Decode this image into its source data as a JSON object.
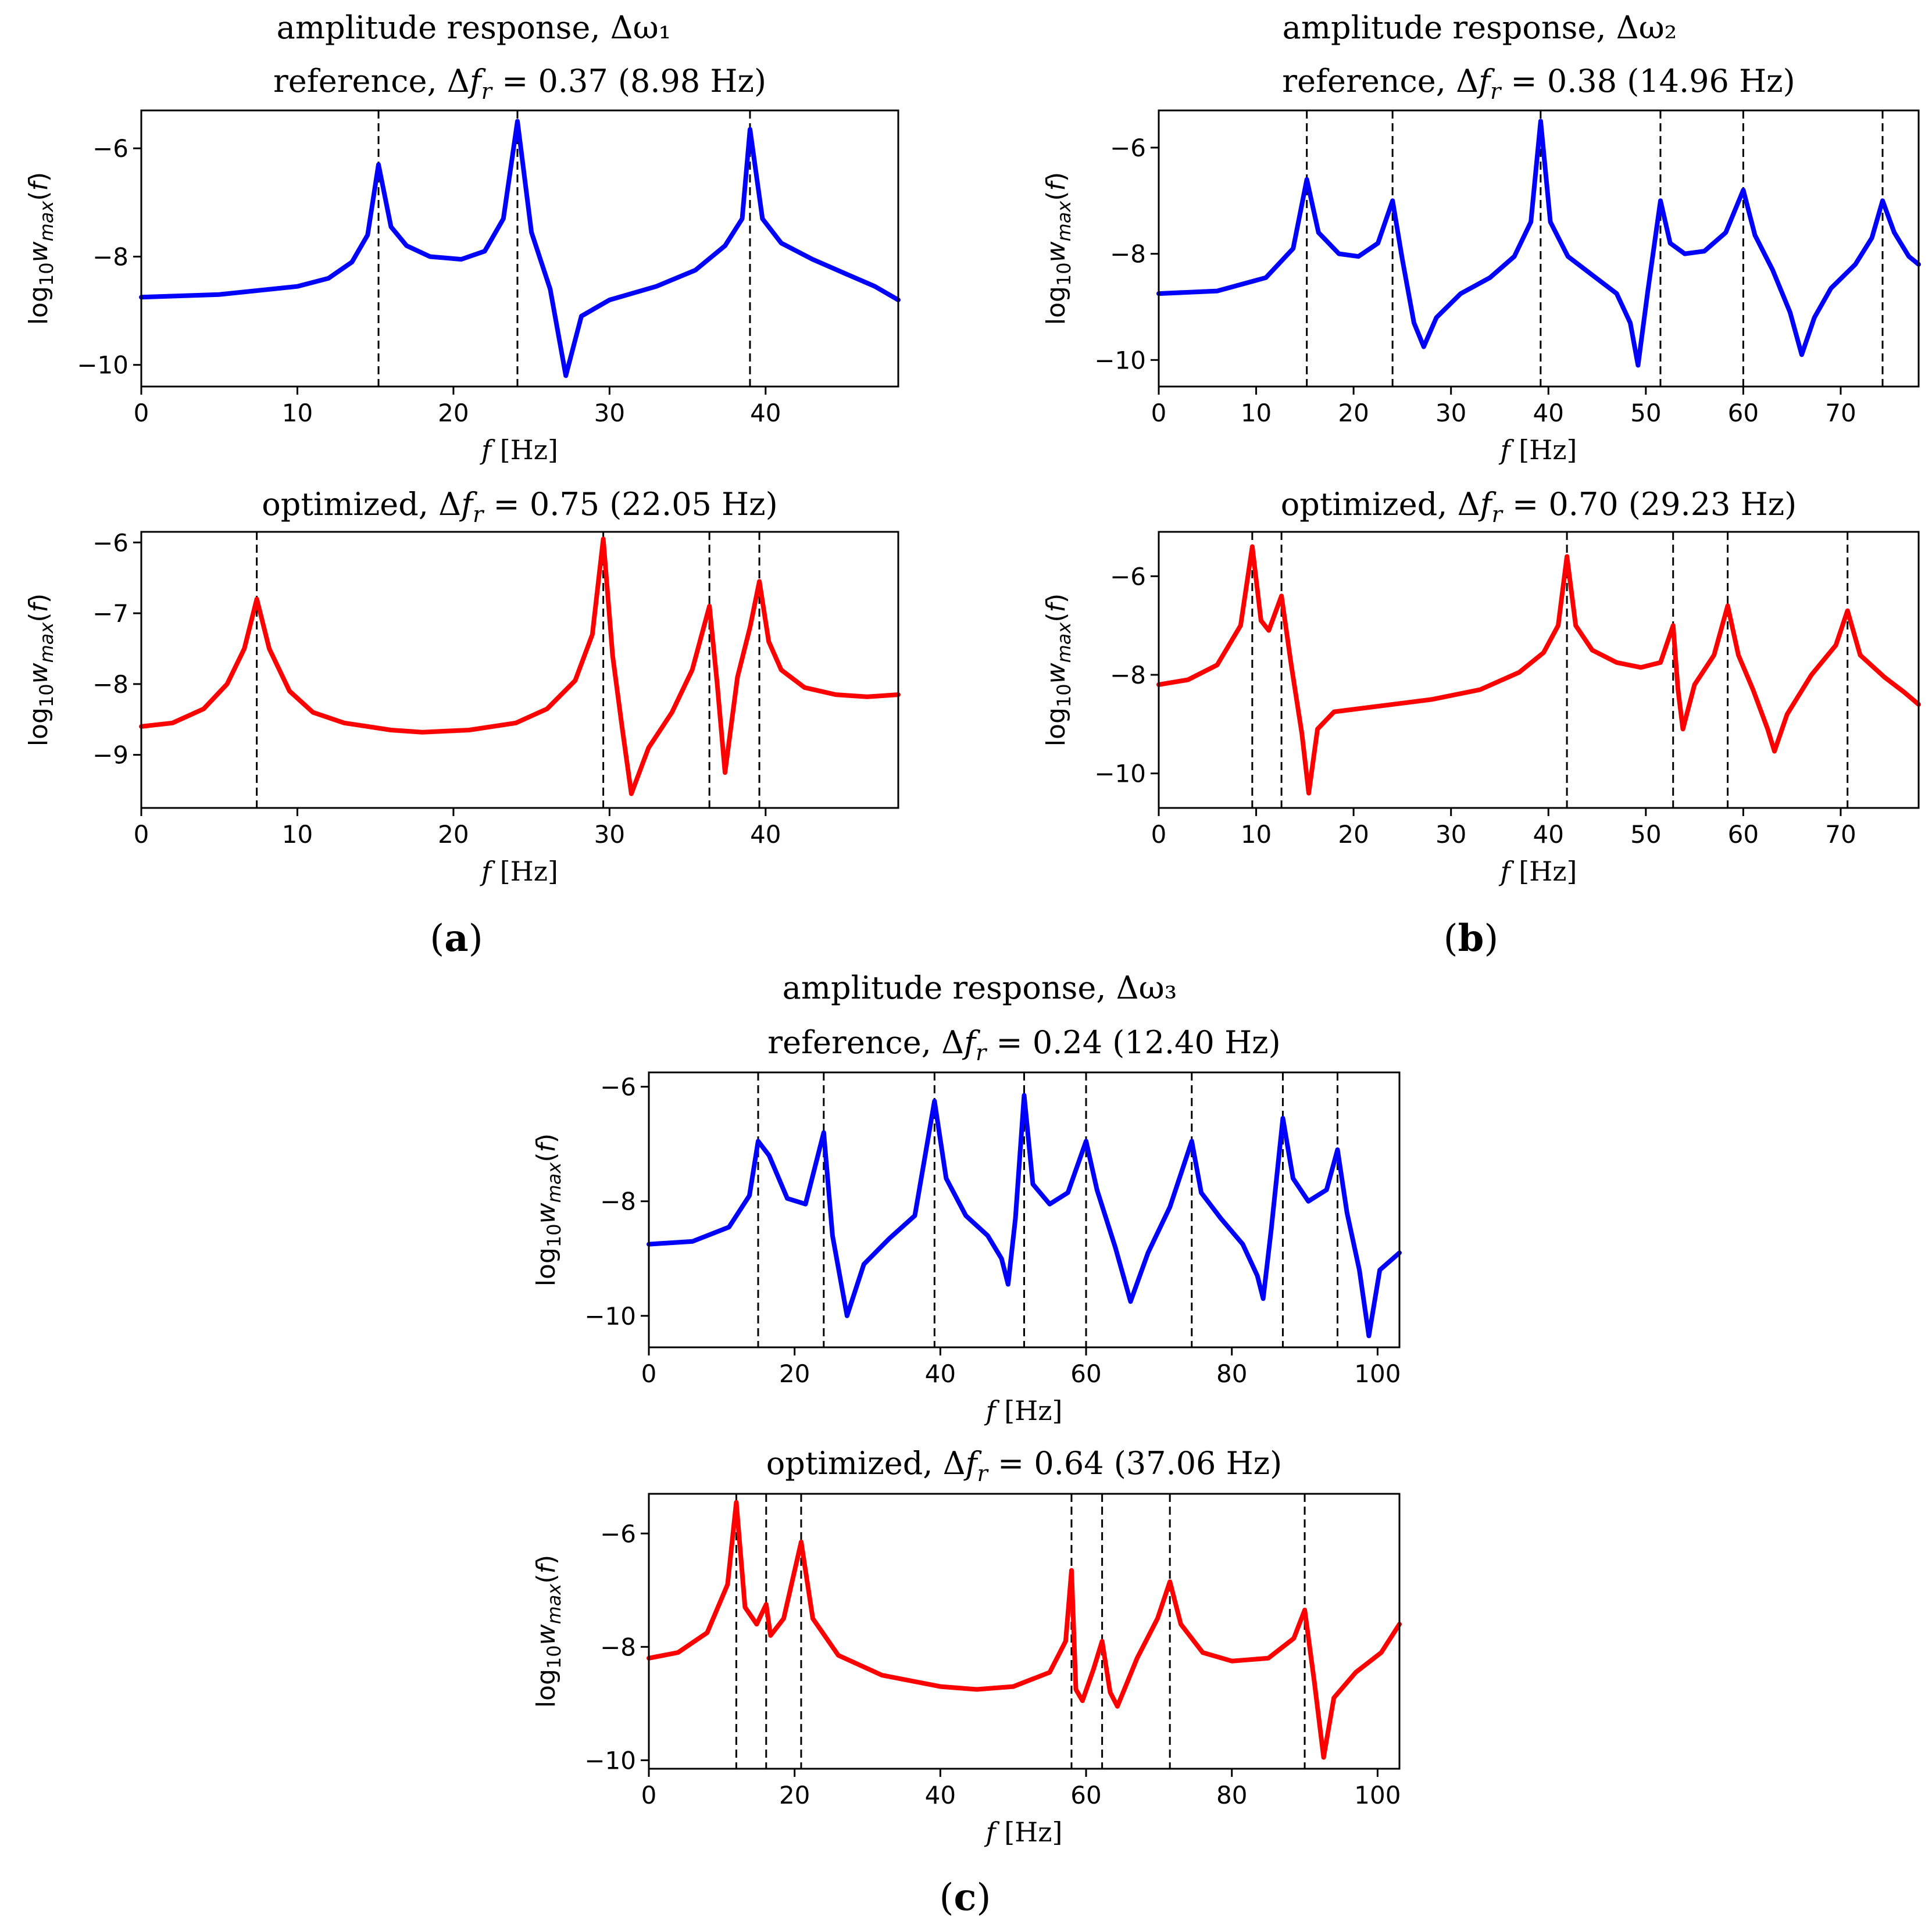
{
  "figure": {
    "subfigure_labels": [
      "a",
      "b",
      "c"
    ]
  },
  "chart_data": [
    {
      "panel": "a",
      "group_title": "amplitude response, Δω₁",
      "title": "reference, Δf_r = 0.37 (8.98 Hz)",
      "title_parts": {
        "prefix": "reference, Δ",
        "var": "f",
        "sub": "r",
        "rest": " = 0.37 (8.98 Hz)"
      },
      "type": "line",
      "color": "#0000ff",
      "xlim": [
        0,
        48.5
      ],
      "ylim": [
        -10.4,
        -5.3
      ],
      "xticks": [
        0,
        10,
        20,
        30,
        40
      ],
      "xtick_labels": [
        "0",
        "10",
        "20",
        "30",
        "40"
      ],
      "yticks": [
        -6,
        -8,
        -10
      ],
      "ytick_labels": [
        "−6",
        "−8",
        "−10"
      ],
      "xlabel": "f [Hz]",
      "ylabel": "log10 w_max(f)",
      "resonances": [
        15.2,
        24.1,
        39.0
      ],
      "x": [
        0,
        5,
        10,
        12,
        13.5,
        14.5,
        15.2,
        16,
        17,
        18.5,
        20.5,
        22,
        23.2,
        24.1,
        25,
        26.2,
        27.2,
        28.2,
        30,
        33,
        35.5,
        37.4,
        38.5,
        39.0,
        39.8,
        41,
        43,
        45,
        47,
        48.5
      ],
      "y": [
        -8.75,
        -8.7,
        -8.55,
        -8.4,
        -8.1,
        -7.6,
        -6.3,
        -7.45,
        -7.8,
        -8.0,
        -8.05,
        -7.9,
        -7.3,
        -5.5,
        -7.55,
        -8.6,
        -10.2,
        -9.1,
        -8.8,
        -8.55,
        -8.25,
        -7.8,
        -7.3,
        -5.65,
        -7.3,
        -7.75,
        -8.05,
        -8.3,
        -8.55,
        -8.8
      ]
    },
    {
      "panel": "a",
      "title": "optimized, Δf_r = 0.75 (22.05 Hz)",
      "title_parts": {
        "prefix": "optimized, Δ",
        "var": "f",
        "sub": "r",
        "rest": " = 0.75 (22.05 Hz)"
      },
      "type": "line",
      "color": "#ff0000",
      "xlim": [
        0,
        48.5
      ],
      "ylim": [
        -9.75,
        -5.85
      ],
      "xticks": [
        0,
        10,
        20,
        30,
        40
      ],
      "xtick_labels": [
        "0",
        "10",
        "20",
        "30",
        "40"
      ],
      "yticks": [
        -6,
        -7,
        -8,
        -9
      ],
      "ytick_labels": [
        "−6",
        "−7",
        "−8",
        "−9"
      ],
      "xlabel": "f [Hz]",
      "ylabel": "log10 w_max(f)",
      "resonances": [
        7.4,
        29.6,
        36.4,
        39.6
      ],
      "x": [
        0,
        2,
        4,
        5.5,
        6.6,
        7.4,
        8.2,
        9.5,
        11,
        13,
        16,
        18,
        21,
        24,
        26,
        27.8,
        28.9,
        29.6,
        30.2,
        30.8,
        31.4,
        32.5,
        34,
        35.3,
        36.4,
        36.9,
        37.4,
        38.2,
        39.0,
        39.6,
        40.2,
        41,
        42.5,
        44.5,
        46.5,
        48.5
      ],
      "y": [
        -8.6,
        -8.55,
        -8.35,
        -8.0,
        -7.5,
        -6.8,
        -7.5,
        -8.1,
        -8.4,
        -8.55,
        -8.65,
        -8.68,
        -8.65,
        -8.55,
        -8.35,
        -7.95,
        -7.3,
        -5.95,
        -7.6,
        -8.6,
        -9.55,
        -8.9,
        -8.4,
        -7.8,
        -6.9,
        -8.0,
        -9.25,
        -7.9,
        -7.2,
        -6.55,
        -7.4,
        -7.8,
        -8.05,
        -8.15,
        -8.18,
        -8.15
      ]
    },
    {
      "panel": "b",
      "group_title": "amplitude response, Δω₂",
      "title": "reference, Δf_r = 0.38 (14.96 Hz)",
      "title_parts": {
        "prefix": "reference, Δ",
        "var": "f",
        "sub": "r",
        "rest": " = 0.38 (14.96 Hz)"
      },
      "type": "line",
      "color": "#0000ff",
      "xlim": [
        0,
        78
      ],
      "ylim": [
        -10.5,
        -5.3
      ],
      "xticks": [
        0,
        10,
        20,
        30,
        40,
        50,
        60,
        70
      ],
      "xtick_labels": [
        "0",
        "10",
        "20",
        "30",
        "40",
        "50",
        "60",
        "70"
      ],
      "yticks": [
        -6,
        -8,
        -10
      ],
      "ytick_labels": [
        "−6",
        "−8",
        "−10"
      ],
      "xlabel": "f [Hz]",
      "ylabel": "log10 w_max(f)",
      "resonances": [
        15.2,
        24.0,
        39.2,
        51.5,
        60.0,
        74.3
      ],
      "x": [
        0,
        6,
        11,
        13.8,
        15.2,
        16.4,
        18.5,
        20.5,
        22.5,
        24.0,
        25,
        26.2,
        27.2,
        28.5,
        31,
        34,
        36.5,
        38.2,
        39.2,
        40.2,
        42,
        44.5,
        47,
        48.4,
        49.2,
        50.2,
        51.5,
        52.5,
        54,
        56,
        58.2,
        60.0,
        61.2,
        63,
        64.8,
        66,
        67.3,
        69,
        71.5,
        73.2,
        74.3,
        75.5,
        77,
        78
      ],
      "y": [
        -8.75,
        -8.7,
        -8.45,
        -7.9,
        -6.6,
        -7.6,
        -8.0,
        -8.05,
        -7.8,
        -7.0,
        -8.1,
        -9.3,
        -9.75,
        -9.2,
        -8.75,
        -8.45,
        -8.05,
        -7.4,
        -5.5,
        -7.4,
        -8.05,
        -8.4,
        -8.75,
        -9.3,
        -10.1,
        -8.7,
        -7.0,
        -7.8,
        -8.0,
        -7.95,
        -7.6,
        -6.8,
        -7.65,
        -8.3,
        -9.1,
        -9.9,
        -9.2,
        -8.65,
        -8.2,
        -7.7,
        -7.0,
        -7.6,
        -8.05,
        -8.2
      ]
    },
    {
      "panel": "b",
      "title": "optimized, Δf_r = 0.70 (29.23 Hz)",
      "title_parts": {
        "prefix": "optimized, Δ",
        "var": "f",
        "sub": "r",
        "rest": " = 0.70 (29.23 Hz)"
      },
      "type": "line",
      "color": "#ff0000",
      "xlim": [
        0,
        78
      ],
      "ylim": [
        -10.7,
        -5.1
      ],
      "xticks": [
        0,
        10,
        20,
        30,
        40,
        50,
        60,
        70
      ],
      "xtick_labels": [
        "0",
        "10",
        "20",
        "30",
        "40",
        "50",
        "60",
        "70"
      ],
      "yticks": [
        -6,
        -8,
        -10
      ],
      "ytick_labels": [
        "−6",
        "−8",
        "−10"
      ],
      "xlabel": "f [Hz]",
      "ylabel": "log10 w_max(f)",
      "resonances": [
        9.6,
        12.6,
        41.9,
        52.8,
        58.4,
        70.7
      ],
      "x": [
        0,
        3,
        6,
        8.4,
        9.6,
        10.5,
        11.3,
        12.6,
        13.6,
        14.7,
        15.4,
        16.3,
        18,
        22,
        28,
        33,
        37,
        39.5,
        41,
        41.9,
        42.8,
        44.5,
        47,
        49.5,
        51.5,
        52.8,
        53.3,
        53.8,
        55,
        57,
        58.4,
        59.5,
        61,
        62.5,
        63.2,
        64.5,
        67,
        69.5,
        70.7,
        72,
        74.5,
        76.5,
        78
      ],
      "y": [
        -8.2,
        -8.1,
        -7.8,
        -7.0,
        -5.4,
        -6.9,
        -7.1,
        -6.4,
        -7.8,
        -9.2,
        -10.4,
        -9.1,
        -8.75,
        -8.65,
        -8.5,
        -8.3,
        -7.95,
        -7.55,
        -7.0,
        -5.6,
        -7.0,
        -7.5,
        -7.75,
        -7.85,
        -7.75,
        -7.0,
        -8.3,
        -9.1,
        -8.2,
        -7.6,
        -6.6,
        -7.6,
        -8.3,
        -9.1,
        -9.55,
        -8.8,
        -8.0,
        -7.4,
        -6.7,
        -7.6,
        -8.05,
        -8.35,
        -8.6
      ]
    },
    {
      "panel": "c",
      "group_title": "amplitude response, Δω₃",
      "title": "reference, Δf_r = 0.24 (12.40 Hz)",
      "title_parts": {
        "prefix": "reference, Δ",
        "var": "f",
        "sub": "r",
        "rest": " = 0.24 (12.40 Hz)"
      },
      "type": "line",
      "color": "#0000ff",
      "xlim": [
        0,
        103
      ],
      "ylim": [
        -10.55,
        -5.75
      ],
      "xticks": [
        0,
        20,
        40,
        60,
        80,
        100
      ],
      "xtick_labels": [
        "0",
        "20",
        "40",
        "60",
        "80",
        "100"
      ],
      "yticks": [
        -6,
        -8,
        -10
      ],
      "ytick_labels": [
        "−6",
        "−8",
        "−10"
      ],
      "xlabel": "f [Hz]",
      "ylabel": "log10 w_max(f)",
      "resonances": [
        15.0,
        24.0,
        39.2,
        51.5,
        60.0,
        74.5,
        87.0,
        94.5
      ],
      "x": [
        0,
        6,
        11,
        13.8,
        15.0,
        16.5,
        19,
        21.5,
        24.0,
        25.2,
        27.2,
        29.5,
        33,
        36.5,
        39.2,
        40.8,
        43.5,
        46.5,
        48.4,
        49.3,
        50.3,
        51.5,
        52.7,
        55,
        57.5,
        60.0,
        61.5,
        64,
        66.1,
        68.5,
        71.5,
        74.5,
        75.8,
        78.5,
        81.5,
        83.5,
        84.3,
        85.4,
        87.0,
        88.4,
        90.5,
        93,
        94.5,
        95.8,
        97.5,
        98.8,
        100.3,
        103
      ],
      "y": [
        -8.75,
        -8.7,
        -8.45,
        -7.9,
        -6.95,
        -7.2,
        -7.95,
        -8.05,
        -6.8,
        -8.6,
        -10.0,
        -9.1,
        -8.65,
        -8.25,
        -6.25,
        -7.6,
        -8.25,
        -8.6,
        -9.0,
        -9.45,
        -8.3,
        -6.15,
        -7.7,
        -8.05,
        -7.85,
        -6.95,
        -7.8,
        -8.8,
        -9.75,
        -8.9,
        -8.1,
        -6.95,
        -7.85,
        -8.3,
        -8.75,
        -9.3,
        -9.7,
        -8.5,
        -6.55,
        -7.6,
        -8.0,
        -7.8,
        -7.1,
        -8.2,
        -9.2,
        -10.35,
        -9.2,
        -8.9
      ]
    },
    {
      "panel": "c",
      "title": "optimized, Δf_r = 0.64 (37.06 Hz)",
      "title_parts": {
        "prefix": "optimized, Δ",
        "var": "f",
        "sub": "r",
        "rest": " = 0.64 (37.06 Hz)"
      },
      "type": "line",
      "color": "#ff0000",
      "xlim": [
        0,
        103
      ],
      "ylim": [
        -10.15,
        -5.3
      ],
      "xticks": [
        0,
        20,
        40,
        60,
        80,
        100
      ],
      "xtick_labels": [
        "0",
        "20",
        "40",
        "60",
        "80",
        "100"
      ],
      "yticks": [
        -6,
        -8,
        -10
      ],
      "ytick_labels": [
        "−6",
        "−8",
        "−10"
      ],
      "xlabel": "f [Hz]",
      "ylabel": "log10 w_max(f)",
      "resonances": [
        12.0,
        16.1,
        20.9,
        58.0,
        62.2,
        71.5,
        90.0
      ],
      "x": [
        0,
        4,
        8,
        10.8,
        12.0,
        13.2,
        14.8,
        16.1,
        16.7,
        18.5,
        20.9,
        22.5,
        26,
        32,
        40,
        45,
        50,
        55,
        57.2,
        58.0,
        58.6,
        59.5,
        61,
        62.2,
        63.3,
        64.3,
        67,
        69.8,
        71.5,
        73,
        76,
        80,
        85,
        88.5,
        90.0,
        91.3,
        92.6,
        94,
        97,
        100.5,
        103
      ],
      "y": [
        -8.2,
        -8.1,
        -7.75,
        -6.9,
        -5.45,
        -7.3,
        -7.6,
        -7.25,
        -7.8,
        -7.5,
        -6.15,
        -7.5,
        -8.15,
        -8.5,
        -8.7,
        -8.75,
        -8.7,
        -8.45,
        -7.9,
        -6.65,
        -8.75,
        -8.95,
        -8.4,
        -7.9,
        -8.8,
        -9.05,
        -8.2,
        -7.5,
        -6.85,
        -7.6,
        -8.1,
        -8.25,
        -8.2,
        -7.85,
        -7.35,
        -8.6,
        -9.95,
        -8.9,
        -8.45,
        -8.1,
        -7.6
      ]
    }
  ]
}
